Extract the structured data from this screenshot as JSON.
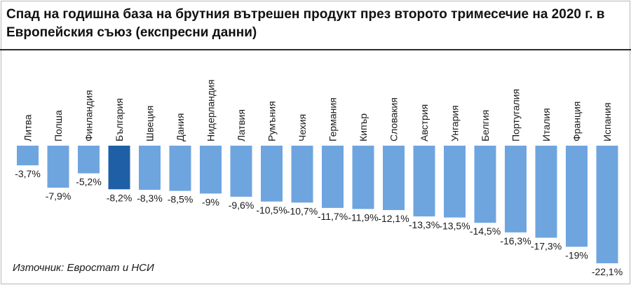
{
  "title": "Спад на годишна база на брутния вътрешен продукт през второто тримесечие на 2020 г. в Европейския съюз (експресни данни)",
  "source": "Източник: Евростат и НСИ",
  "colors": {
    "bar": "#6fa5df",
    "highlight": "#1f5fa6",
    "text": "#1a1a1a"
  },
  "chart_data": {
    "type": "bar",
    "categories": [
      "Литва",
      "Полша",
      "Финландия",
      "България",
      "Швеция",
      "Дания",
      "Нидерландия",
      "Латвия",
      "Румъния",
      "Чехия",
      "Германия",
      "Кипър",
      "Словакия",
      "Австрия",
      "Унгария",
      "Белгия",
      "Португалия",
      "Италия",
      "Франция",
      "Испания"
    ],
    "values": [
      -3.7,
      -7.9,
      -5.2,
      -8.2,
      -8.3,
      -8.5,
      -9,
      -9.6,
      -10.5,
      -10.7,
      -11.7,
      -11.9,
      -12.1,
      -13.3,
      -13.5,
      -14.5,
      -16.3,
      -17.3,
      -19,
      -22.1
    ],
    "labels": [
      "-3,7%",
      "-7,9%",
      "-5,2%",
      "-8,2%",
      "-8,3%",
      "-8,5%",
      "-9%",
      "-9,6%",
      "-10,5%",
      "-10,7%",
      "-11,7%",
      "-11,9%",
      "-12,1%",
      "-13,3%",
      "-13,5%",
      "-14,5%",
      "-16,3%",
      "-17,3%",
      "-19%",
      "-22,1%"
    ],
    "highlight_category": "България",
    "ylim": [
      -22.1,
      0
    ]
  }
}
